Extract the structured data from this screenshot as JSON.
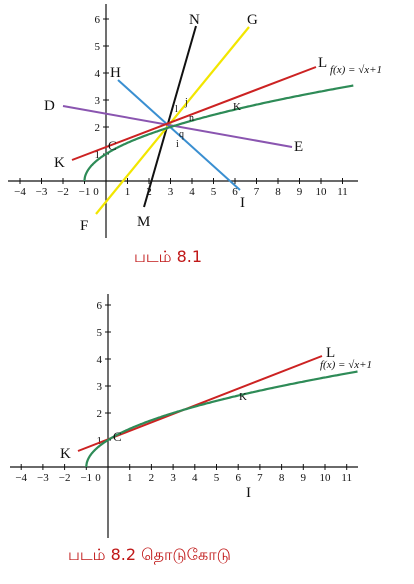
{
  "figure1": {
    "caption": "படம் 8.1",
    "x_ticks": [
      "−4",
      "−3",
      "−2",
      "−1",
      "0",
      "1",
      "2",
      "3",
      "4",
      "5",
      "6",
      "7",
      "8",
      "9",
      "10",
      "11"
    ],
    "y_ticks": [
      "1",
      "2",
      "3",
      "4",
      "5",
      "6"
    ],
    "function_label": "f(x) = √x+1",
    "line_labels": [
      "N",
      "G",
      "H",
      "L",
      "D",
      "K",
      "E",
      "F",
      "M",
      "I",
      "C",
      "K"
    ],
    "small_labels": [
      "j",
      "l",
      "n",
      "q",
      "i",
      "k"
    ],
    "colors": {
      "curve": "#2e8b57",
      "red": "#cc2222",
      "black": "#111111",
      "yellow": "#f2e600",
      "blue": "#3a8fd1",
      "purple": "#8a55b0"
    }
  },
  "figure2": {
    "caption": "படம் 8.2 தொடுகோடு",
    "x_ticks": [
      "−4",
      "−3",
      "−2",
      "−1",
      "0",
      "1",
      "2",
      "3",
      "4",
      "5",
      "6",
      "7",
      "8",
      "9",
      "10",
      "11"
    ],
    "y_ticks": [
      "1",
      "2",
      "3",
      "4",
      "5",
      "6"
    ],
    "function_label": "f(x) = √x+1",
    "line_labels": [
      "L",
      "K",
      "C",
      "K",
      "I"
    ]
  }
}
